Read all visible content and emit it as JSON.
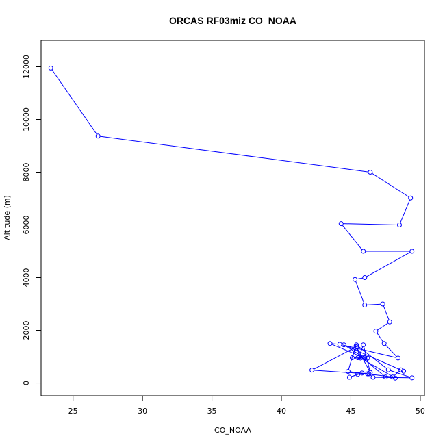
{
  "chart_data": {
    "type": "line",
    "title": "ORCAS RF03miz CO_NOAA",
    "xlabel": "CO_NOAA",
    "ylabel": "Altitude (m)",
    "xlim": [
      22.7,
      50.3
    ],
    "ylim": [
      -480,
      13000
    ],
    "xticks": [
      25,
      30,
      35,
      40,
      45,
      50
    ],
    "yticks": [
      0,
      2000,
      4000,
      6000,
      8000,
      10000,
      12000
    ],
    "series_color": "#0000ff",
    "marker": "open-circle",
    "x": [
      23.4,
      26.8,
      46.4,
      49.3,
      48.5,
      44.3,
      45.9,
      49.4,
      46.0,
      45.3,
      46.0,
      47.3,
      47.8,
      46.8,
      47.4,
      48.4,
      44.2,
      43.5,
      46.0,
      44.5,
      48.8,
      48.6,
      48.0,
      44.8,
      45.3,
      42.2,
      46.2,
      45.5,
      44.9,
      45.8,
      46.3,
      46.6,
      49.4,
      47.7,
      45.4,
      45.1,
      46.2,
      45.8,
      47.5,
      48.2,
      45.7,
      45.4,
      46.4,
      45.9,
      45.6,
      45.5,
      46.0
    ],
    "y": [
      11950,
      9370,
      8000,
      7020,
      6000,
      6050,
      5000,
      5000,
      4000,
      3930,
      2960,
      3000,
      2320,
      1970,
      1500,
      950,
      1470,
      1500,
      950,
      1450,
      450,
      500,
      230,
      440,
      1350,
      490,
      350,
      330,
      220,
      380,
      350,
      220,
      200,
      500,
      1450,
      960,
      940,
      970,
      230,
      190,
      950,
      1380,
      400,
      1450,
      1000,
      960,
      970
    ]
  }
}
